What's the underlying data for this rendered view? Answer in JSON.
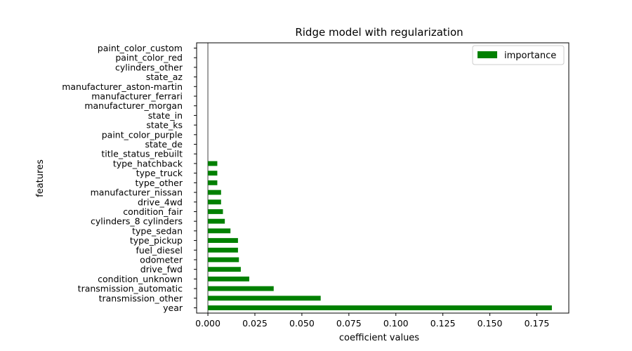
{
  "chart_data": {
    "type": "bar",
    "orientation": "horizontal",
    "title": "Ridge model with regularization",
    "xlabel": "coefficient values",
    "ylabel": "features",
    "xlim": [
      -0.006,
      0.192
    ],
    "xticks": [
      0.0,
      0.025,
      0.05,
      0.075,
      0.1,
      0.125,
      0.15,
      0.175
    ],
    "xtick_labels": [
      "0.000",
      "0.025",
      "0.050",
      "0.075",
      "0.100",
      "0.125",
      "0.150",
      "0.175"
    ],
    "grid": false,
    "legend_position": "top-right",
    "zero_line_color": "#808080",
    "bar_color": "#008000",
    "categories": [
      "year",
      "transmission_other",
      "transmission_automatic",
      "condition_unknown",
      "drive_fwd",
      "odometer",
      "fuel_diesel",
      "type_pickup",
      "type_sedan",
      "cylinders_8 cylinders",
      "condition_fair",
      "drive_4wd",
      "manufacturer_nissan",
      "type_other",
      "type_truck",
      "type_hatchback",
      "title_status_rebuilt",
      "state_de",
      "paint_color_purple",
      "state_ks",
      "state_in",
      "manufacturer_morgan",
      "manufacturer_ferrari",
      "manufacturer_aston-martin",
      "state_az",
      "cylinders_other",
      "paint_color_red",
      "paint_color_custom"
    ],
    "series": [
      {
        "name": "importance",
        "values": [
          0.183,
          0.06,
          0.035,
          0.022,
          0.0175,
          0.0165,
          0.016,
          0.016,
          0.012,
          0.009,
          0.008,
          0.007,
          0.007,
          0.005,
          0.005,
          0.005,
          0.0,
          0.0,
          0.0,
          0.0,
          0.0,
          0.0,
          0.0,
          0.0,
          0.0,
          0.0,
          0.0,
          0.0
        ]
      }
    ]
  }
}
